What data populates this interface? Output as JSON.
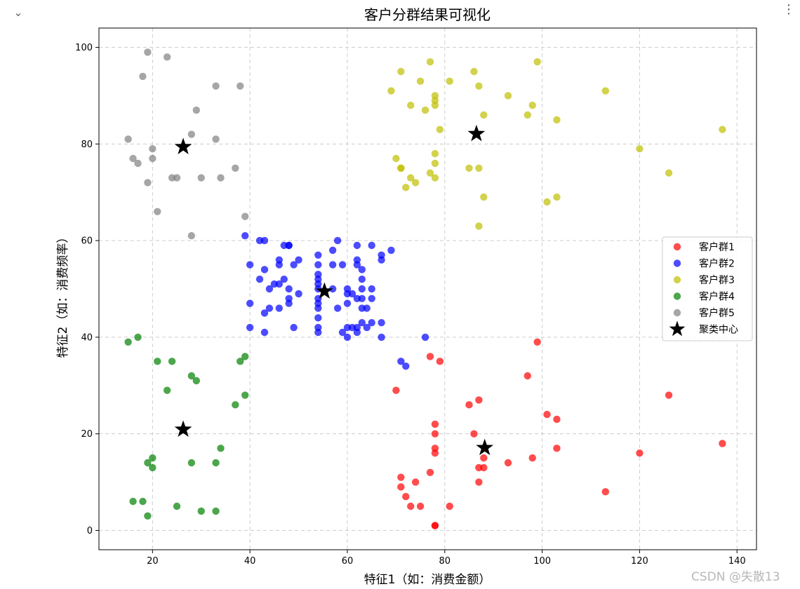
{
  "ui": {
    "collapse_icon": "chevron-down-icon",
    "collapse_glyph": "⌄",
    "menu_icon": "more-vert-icon",
    "menu_glyph": "⋮",
    "watermark": "CSDN @失散13"
  },
  "chart_data": {
    "type": "scatter",
    "title": "客户分群结果可视化",
    "xlabel": "特征1（如：消费金额）",
    "ylabel": "特征2（如：消费频率）",
    "xlim": [
      9,
      144
    ],
    "ylim": [
      -4,
      104
    ],
    "xticks": [
      20,
      40,
      60,
      80,
      100,
      120,
      140
    ],
    "yticks": [
      0,
      20,
      40,
      60,
      80,
      100
    ],
    "grid": true,
    "grid_style": "dashed",
    "legend_position": "right",
    "series": [
      {
        "name": "客户群1",
        "color": "#ff0000",
        "points": [
          [
            71,
            11
          ],
          [
            71,
            9
          ],
          [
            72,
            7
          ],
          [
            73,
            5
          ],
          [
            74,
            10
          ],
          [
            75,
            5
          ],
          [
            77,
            12
          ],
          [
            78,
            1
          ],
          [
            78,
            1
          ],
          [
            78,
            22
          ],
          [
            78,
            20
          ],
          [
            78,
            17
          ],
          [
            78,
            16
          ],
          [
            77,
            36
          ],
          [
            79,
            35
          ],
          [
            81,
            5
          ],
          [
            70,
            29
          ],
          [
            85,
            26
          ],
          [
            86,
            20
          ],
          [
            87,
            27
          ],
          [
            87,
            13
          ],
          [
            87,
            10
          ],
          [
            88,
            15
          ],
          [
            88,
            13
          ],
          [
            93,
            14
          ],
          [
            97,
            32
          ],
          [
            98,
            15
          ],
          [
            99,
            39
          ],
          [
            101,
            24
          ],
          [
            103,
            23
          ],
          [
            103,
            17
          ],
          [
            113,
            8
          ],
          [
            120,
            16
          ],
          [
            126,
            28
          ],
          [
            137,
            18
          ]
        ]
      },
      {
        "name": "客户群2",
        "color": "#0000ff",
        "points": [
          [
            39,
            61
          ],
          [
            40,
            55
          ],
          [
            40,
            47
          ],
          [
            40,
            42
          ],
          [
            42,
            52
          ],
          [
            42,
            60
          ],
          [
            43,
            60
          ],
          [
            43,
            54
          ],
          [
            43,
            45
          ],
          [
            43,
            41
          ],
          [
            44,
            50
          ],
          [
            44,
            46
          ],
          [
            45,
            51
          ],
          [
            46,
            56
          ],
          [
            46,
            55
          ],
          [
            46,
            51
          ],
          [
            46,
            46
          ],
          [
            47,
            59
          ],
          [
            47,
            52
          ],
          [
            48,
            59
          ],
          [
            48,
            59
          ],
          [
            48,
            50
          ],
          [
            48,
            48
          ],
          [
            48,
            47
          ],
          [
            49,
            55
          ],
          [
            49,
            42
          ],
          [
            50,
            56
          ],
          [
            50,
            49
          ],
          [
            54,
            57
          ],
          [
            54,
            55
          ],
          [
            54,
            53
          ],
          [
            54,
            52
          ],
          [
            54,
            51
          ],
          [
            54,
            50
          ],
          [
            54,
            48
          ],
          [
            54,
            47
          ],
          [
            54,
            46
          ],
          [
            54,
            44
          ],
          [
            54,
            42
          ],
          [
            54,
            41
          ],
          [
            57,
            58
          ],
          [
            57,
            55
          ],
          [
            57,
            50
          ],
          [
            58,
            60
          ],
          [
            58,
            46
          ],
          [
            59,
            55
          ],
          [
            59,
            41
          ],
          [
            60,
            50
          ],
          [
            60,
            49
          ],
          [
            60,
            47
          ],
          [
            60,
            42
          ],
          [
            60,
            40
          ],
          [
            61,
            49
          ],
          [
            61,
            42
          ],
          [
            62,
            59
          ],
          [
            62,
            56
          ],
          [
            62,
            55
          ],
          [
            62,
            48
          ],
          [
            62,
            42
          ],
          [
            62,
            41
          ],
          [
            63,
            54
          ],
          [
            63,
            52
          ],
          [
            63,
            50
          ],
          [
            63,
            48
          ],
          [
            63,
            46
          ],
          [
            63,
            43
          ],
          [
            64,
            46
          ],
          [
            64,
            42
          ],
          [
            65,
            59
          ],
          [
            65,
            50
          ],
          [
            65,
            48
          ],
          [
            65,
            43
          ],
          [
            67,
            57
          ],
          [
            67,
            56
          ],
          [
            67,
            43
          ],
          [
            67,
            40
          ],
          [
            69,
            58
          ],
          [
            71,
            35
          ],
          [
            72,
            34
          ],
          [
            76,
            40
          ]
        ]
      },
      {
        "name": "客户群3",
        "color": "#bfbf00",
        "points": [
          [
            69,
            91
          ],
          [
            70,
            77
          ],
          [
            71,
            95
          ],
          [
            71,
            75
          ],
          [
            71,
            75
          ],
          [
            72,
            71
          ],
          [
            73,
            88
          ],
          [
            73,
            73
          ],
          [
            74,
            72
          ],
          [
            75,
            93
          ],
          [
            76,
            87
          ],
          [
            77,
            97
          ],
          [
            77,
            74
          ],
          [
            78,
            90
          ],
          [
            78,
            89
          ],
          [
            78,
            88
          ],
          [
            78,
            78
          ],
          [
            78,
            76
          ],
          [
            78,
            73
          ],
          [
            79,
            83
          ],
          [
            81,
            93
          ],
          [
            85,
            75
          ],
          [
            86,
            95
          ],
          [
            87,
            92
          ],
          [
            87,
            75
          ],
          [
            87,
            63
          ],
          [
            88,
            86
          ],
          [
            88,
            69
          ],
          [
            93,
            90
          ],
          [
            97,
            86
          ],
          [
            98,
            88
          ],
          [
            99,
            97
          ],
          [
            101,
            68
          ],
          [
            103,
            85
          ],
          [
            103,
            69
          ],
          [
            113,
            91
          ],
          [
            120,
            79
          ],
          [
            126,
            74
          ],
          [
            137,
            83
          ]
        ]
      },
      {
        "name": "客户群4",
        "color": "#008000",
        "points": [
          [
            15,
            39
          ],
          [
            16,
            6
          ],
          [
            17,
            40
          ],
          [
            18,
            6
          ],
          [
            19,
            3
          ],
          [
            19,
            14
          ],
          [
            20,
            15
          ],
          [
            20,
            13
          ],
          [
            21,
            35
          ],
          [
            23,
            29
          ],
          [
            24,
            35
          ],
          [
            25,
            5
          ],
          [
            28,
            32
          ],
          [
            28,
            14
          ],
          [
            29,
            31
          ],
          [
            30,
            4
          ],
          [
            33,
            4
          ],
          [
            33,
            14
          ],
          [
            34,
            17
          ],
          [
            37,
            26
          ],
          [
            38,
            35
          ],
          [
            39,
            36
          ],
          [
            39,
            28
          ]
        ]
      },
      {
        "name": "客户群5",
        "color": "#808080",
        "points": [
          [
            15,
            81
          ],
          [
            16,
            77
          ],
          [
            17,
            76
          ],
          [
            18,
            94
          ],
          [
            19,
            99
          ],
          [
            19,
            72
          ],
          [
            20,
            79
          ],
          [
            20,
            77
          ],
          [
            21,
            66
          ],
          [
            23,
            98
          ],
          [
            24,
            73
          ],
          [
            25,
            73
          ],
          [
            28,
            82
          ],
          [
            28,
            61
          ],
          [
            29,
            87
          ],
          [
            30,
            73
          ],
          [
            33,
            92
          ],
          [
            33,
            81
          ],
          [
            34,
            73
          ],
          [
            37,
            75
          ],
          [
            38,
            92
          ],
          [
            39,
            65
          ]
        ]
      },
      {
        "name": "聚类中心",
        "color": "#000000",
        "marker": "star",
        "points": [
          [
            26.3,
            79.4
          ],
          [
            55.3,
            49.5
          ],
          [
            86.5,
            82.1
          ],
          [
            26.3,
            20.9
          ],
          [
            88.2,
            17.1
          ]
        ]
      }
    ]
  }
}
